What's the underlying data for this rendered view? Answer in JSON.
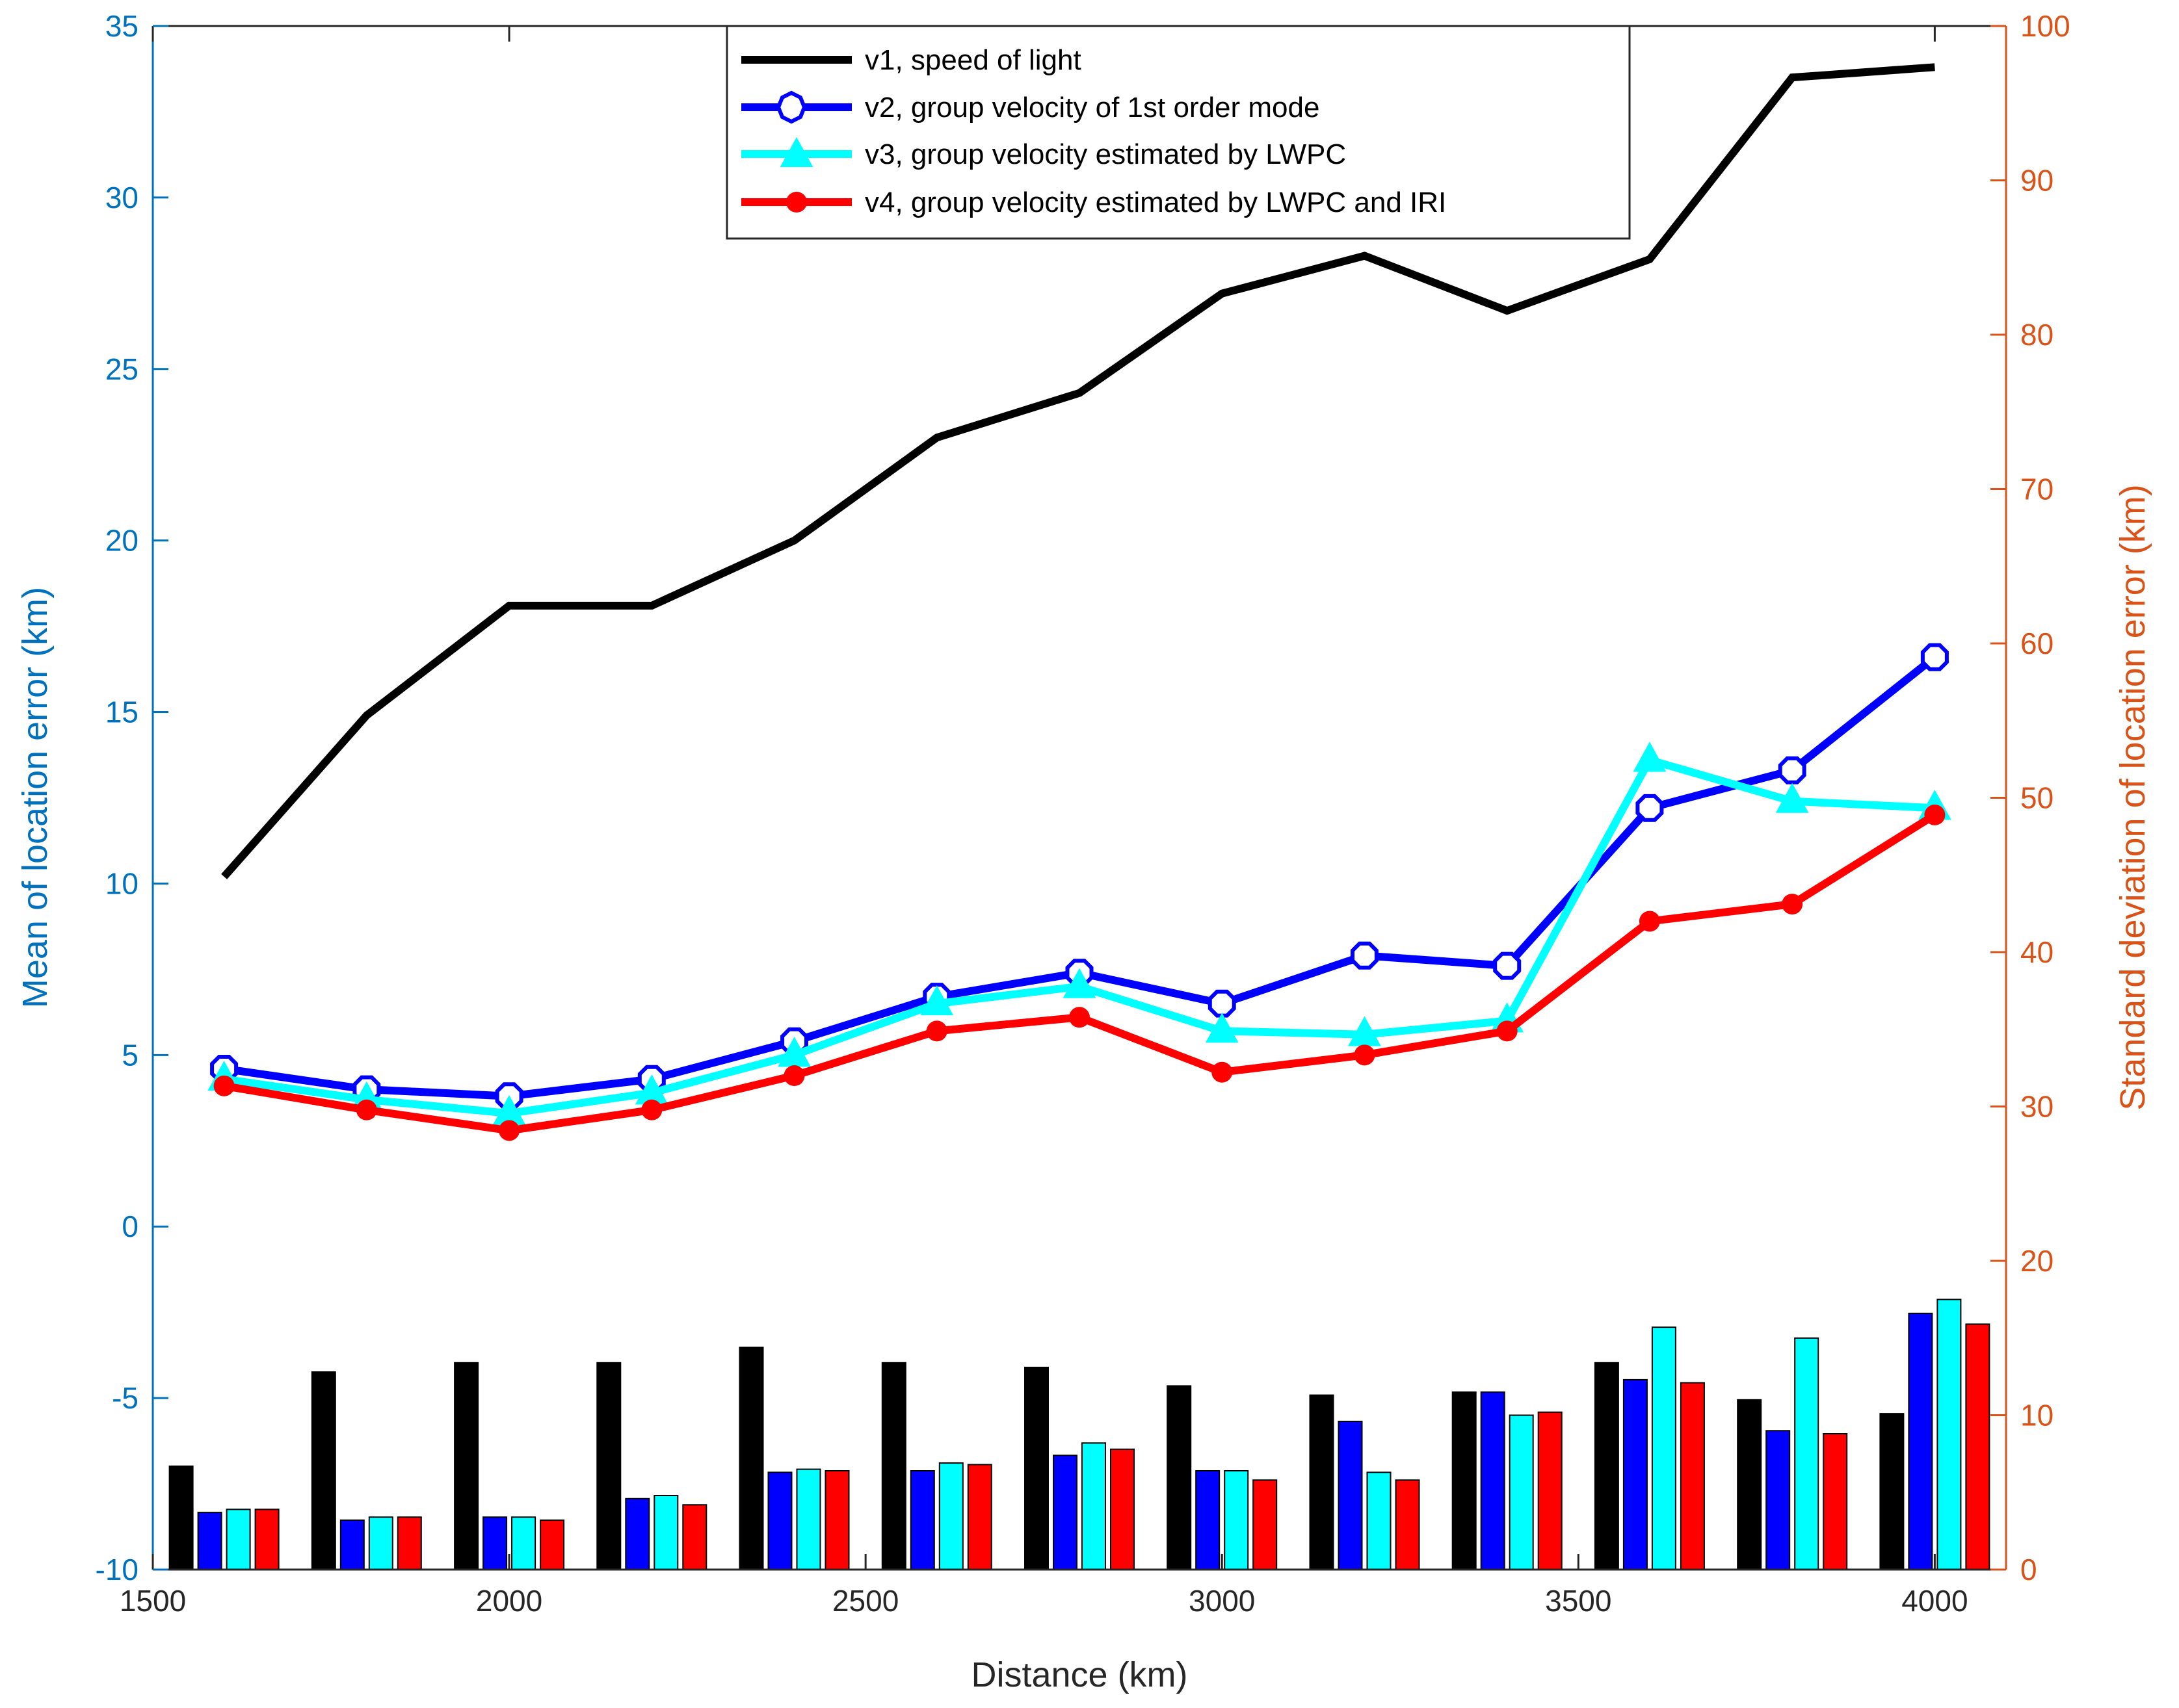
{
  "chart_data": {
    "type": "line+bar",
    "xlabel": "Distance (km)",
    "ylabel_left": "Mean of location error (km)",
    "ylabel_right": "Standard deviation of location error (km)",
    "xlim": [
      1500,
      4100
    ],
    "ylim_left": [
      -10,
      35
    ],
    "ylim_right": [
      0,
      100
    ],
    "x_ticks": [
      1500,
      2000,
      2500,
      3000,
      3500,
      4000
    ],
    "y_left_ticks": [
      -10,
      -5,
      0,
      5,
      10,
      15,
      20,
      25,
      30,
      35
    ],
    "y_right_ticks": [
      0,
      10,
      20,
      30,
      40,
      50,
      60,
      70,
      80,
      90,
      100
    ],
    "left_axis_color": "#0072BD",
    "right_axis_color": "#D95319",
    "x": [
      1600,
      1800,
      2000,
      2200,
      2400,
      2600,
      2800,
      3000,
      3200,
      3400,
      3600,
      3800,
      4000
    ],
    "series": [
      {
        "name": "v1, speed of light",
        "color": "#000000",
        "marker": "none",
        "mean": [
          10.2,
          14.9,
          18.1,
          18.1,
          20.0,
          23.0,
          24.3,
          27.2,
          28.3,
          26.7,
          28.2,
          33.5,
          33.8
        ],
        "std": [
          6.7,
          12.8,
          13.4,
          13.4,
          14.4,
          13.4,
          13.1,
          11.9,
          11.3,
          11.5,
          13.4,
          11.0,
          10.1
        ]
      },
      {
        "name": "v2, group velocity of 1st order mode",
        "color": "#0000FF",
        "marker": "circle",
        "mean": [
          4.6,
          4.0,
          3.8,
          4.3,
          5.4,
          6.7,
          7.4,
          6.5,
          7.9,
          7.6,
          12.2,
          13.3,
          16.6
        ],
        "std": [
          3.7,
          3.2,
          3.4,
          4.6,
          6.3,
          6.4,
          7.4,
          6.4,
          9.6,
          11.5,
          12.3,
          9.0,
          16.6
        ]
      },
      {
        "name": "v3, group velocity estimated by LWPC",
        "color": "#00FFFF",
        "marker": "triangle",
        "mean": [
          4.3,
          3.7,
          3.3,
          3.9,
          5.0,
          6.5,
          7.0,
          5.7,
          5.6,
          6.0,
          13.6,
          12.4,
          12.2
        ],
        "std": [
          3.9,
          3.4,
          3.4,
          4.8,
          6.5,
          6.9,
          8.2,
          6.4,
          6.3,
          10.0,
          15.7,
          15.0,
          17.5
        ]
      },
      {
        "name": "v4, group velocity estimated by LWPC and IRI",
        "color": "#FF0000",
        "marker": "dot",
        "mean": [
          4.1,
          3.4,
          2.8,
          3.4,
          4.4,
          5.7,
          6.1,
          4.5,
          5.0,
          5.7,
          8.9,
          9.4,
          12.0
        ],
        "std": [
          3.9,
          3.4,
          3.2,
          4.2,
          6.4,
          6.8,
          7.8,
          5.8,
          5.8,
          10.2,
          12.1,
          8.8,
          15.9
        ]
      }
    ],
    "legend_position": "top-center"
  }
}
